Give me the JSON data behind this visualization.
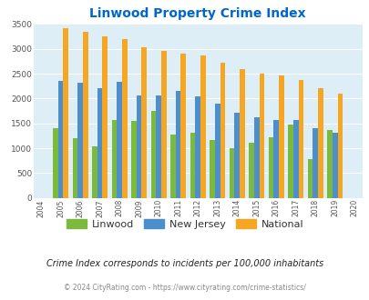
{
  "title": "Linwood Property Crime Index",
  "years": [
    2004,
    2005,
    2006,
    2007,
    2008,
    2009,
    2010,
    2011,
    2012,
    2013,
    2014,
    2015,
    2016,
    2017,
    2018,
    2019,
    2020
  ],
  "linwood": [
    null,
    1400,
    1200,
    1040,
    1560,
    1550,
    1750,
    1270,
    1320,
    1160,
    1000,
    1120,
    1230,
    1480,
    780,
    1370,
    null
  ],
  "new_jersey": [
    null,
    2360,
    2310,
    2200,
    2330,
    2060,
    2060,
    2160,
    2050,
    1900,
    1720,
    1620,
    1560,
    1560,
    1400,
    1310,
    null
  ],
  "national": [
    null,
    3420,
    3340,
    3260,
    3200,
    3040,
    2950,
    2910,
    2860,
    2730,
    2600,
    2500,
    2460,
    2370,
    2200,
    2100,
    null
  ],
  "linwood_color": "#7bba3c",
  "nj_color": "#4d8fcc",
  "national_color": "#f5a623",
  "bg_color": "#ddeef6",
  "title_color": "#0066cc",
  "ylim": [
    0,
    3500
  ],
  "yticks": [
    0,
    500,
    1000,
    1500,
    2000,
    2500,
    3000,
    3500
  ],
  "subtitle": "Crime Index corresponds to incidents per 100,000 inhabitants",
  "footer": "© 2024 CityRating.com - https://www.cityrating.com/crime-statistics/",
  "legend_labels": [
    "Linwood",
    "New Jersey",
    "National"
  ]
}
